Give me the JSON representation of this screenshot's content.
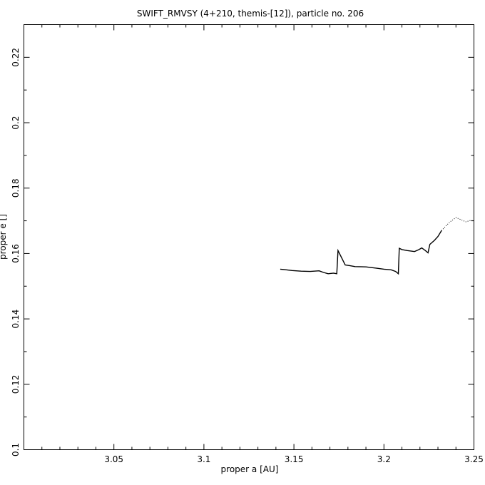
{
  "chart_data": {
    "type": "line",
    "title": "SWIFT_RMVSY (4+210, themis-[12]), particle no. 206",
    "xlabel": "proper a [AU]",
    "ylabel": "proper e []",
    "xlim": [
      3.0,
      3.25
    ],
    "ylim": [
      0.1,
      0.23
    ],
    "x_ticks": [
      3.05,
      3.1,
      3.15,
      3.2,
      3.25
    ],
    "y_ticks": [
      0.1,
      0.12,
      0.14,
      0.16,
      0.18,
      0.2,
      0.22
    ],
    "grid": false,
    "series": [
      {
        "style": "solid",
        "points": [
          [
            3.1424,
            0.1552
          ],
          [
            3.1445,
            0.1551
          ],
          [
            3.149,
            0.1548
          ],
          [
            3.154,
            0.1546
          ],
          [
            3.159,
            0.1545
          ],
          [
            3.164,
            0.1547
          ],
          [
            3.1665,
            0.1542
          ],
          [
            3.169,
            0.1538
          ],
          [
            3.172,
            0.154
          ],
          [
            3.1738,
            0.1538
          ],
          [
            3.1745,
            0.1609
          ],
          [
            3.1765,
            0.1587
          ],
          [
            3.1785,
            0.1565
          ],
          [
            3.181,
            0.1563
          ],
          [
            3.184,
            0.156
          ],
          [
            3.19,
            0.1559
          ],
          [
            3.196,
            0.1555
          ],
          [
            3.2,
            0.1552
          ],
          [
            3.204,
            0.155
          ],
          [
            3.2065,
            0.1545
          ],
          [
            3.208,
            0.1538
          ],
          [
            3.2085,
            0.1616
          ],
          [
            3.21,
            0.1612
          ],
          [
            3.213,
            0.1609
          ],
          [
            3.217,
            0.1606
          ],
          [
            3.2195,
            0.1612
          ],
          [
            3.221,
            0.1617
          ],
          [
            3.223,
            0.1609
          ],
          [
            3.2245,
            0.1602
          ],
          [
            3.2255,
            0.1628
          ],
          [
            3.228,
            0.164
          ],
          [
            3.23,
            0.1652
          ],
          [
            3.232,
            0.167
          ]
        ]
      },
      {
        "style": "dotted",
        "points": [
          [
            3.232,
            0.167
          ],
          [
            3.2345,
            0.1685
          ],
          [
            3.237,
            0.1698
          ],
          [
            3.24,
            0.171
          ],
          [
            3.243,
            0.1703
          ],
          [
            3.2455,
            0.1697
          ],
          [
            3.248,
            0.1701
          ],
          [
            3.25,
            0.17
          ]
        ]
      }
    ]
  }
}
